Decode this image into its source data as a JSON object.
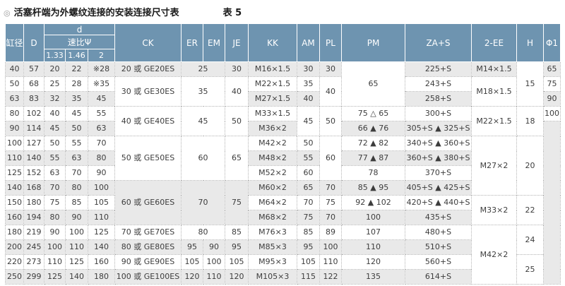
{
  "page": {
    "bullet": "◎",
    "title": "活塞杆端为外螺纹连接的安装连接尺寸表",
    "table_label": "表 5"
  },
  "colors": {
    "header_bg": "#6e94b0",
    "header_text": "#ffffff",
    "row_gray": "#e9e9e9",
    "row_white": "#ffffff",
    "border": "#b3b3b3",
    "text": "#3d3d3d"
  },
  "table": {
    "header_rows": [
      [
        {
          "t": "缸径",
          "rs": 3
        },
        {
          "t": "D",
          "rs": 3
        },
        {
          "t": "d",
          "cs": 3
        },
        {
          "t": "CK",
          "rs": 3
        },
        {
          "t": "ER",
          "rs": 3
        },
        {
          "t": "EM",
          "rs": 3
        },
        {
          "t": "JE",
          "rs": 3
        },
        {
          "t": "KK",
          "rs": 3
        },
        {
          "t": "AM",
          "rs": 3
        },
        {
          "t": "PL",
          "rs": 3
        },
        {
          "t": "PM",
          "rs": 3
        },
        {
          "t": "ZA+S",
          "rs": 3
        },
        {
          "t": "2-EE",
          "rs": 3
        },
        {
          "t": "H",
          "rs": 3
        },
        {
          "t": "Φ1",
          "rs": 3
        }
      ],
      [
        {
          "t": "速比Ψ",
          "cs": 3
        }
      ],
      [
        {
          "t": "1.33"
        },
        {
          "t": "1.46"
        },
        {
          "t": "2"
        }
      ]
    ],
    "rows": [
      [
        {
          "t": "40"
        },
        {
          "t": "57"
        },
        {
          "t": "20"
        },
        {
          "t": "22"
        },
        {
          "t": "※28"
        },
        {
          "t": "20 或 GE20ES"
        },
        {
          "t": "25",
          "cs": 2
        },
        {
          "t": "30"
        },
        {
          "t": "M16×1.5"
        },
        {
          "t": "30"
        },
        {
          "t": "30"
        },
        {
          "t": "65",
          "rs": 3,
          "bg": "w"
        },
        {
          "t": "225+S"
        },
        {
          "t": "M14×1.5"
        },
        {
          "t": "15",
          "rs": 3,
          "bg": "w"
        },
        {
          "t": "65"
        }
      ],
      [
        {
          "t": "50"
        },
        {
          "t": "68"
        },
        {
          "t": "25"
        },
        {
          "t": "28"
        },
        {
          "t": "※35"
        },
        {
          "t": "30 或 GE30ES",
          "rs": 2
        },
        {
          "t": "35",
          "cs": 2,
          "rs": 2
        },
        {
          "t": "40",
          "rs": 2
        },
        {
          "t": "M22×1.5"
        },
        {
          "t": "35"
        },
        {
          "t": "40",
          "rs": 2
        },
        {
          "t": "243+S"
        },
        {
          "t": "M18×1.5",
          "rs": 2
        },
        {
          "t": "75"
        }
      ],
      [
        {
          "t": "63"
        },
        {
          "t": "83"
        },
        {
          "t": "32"
        },
        {
          "t": "35"
        },
        {
          "t": "45"
        },
        {
          "t": "M27×1.5"
        },
        {
          "t": "40"
        },
        {
          "t": "258+S"
        },
        {
          "t": "90"
        }
      ],
      [
        {
          "t": "80"
        },
        {
          "t": "102"
        },
        {
          "t": "40"
        },
        {
          "t": "45"
        },
        {
          "t": "55"
        },
        {
          "t": "40 或 GE40ES",
          "rs": 2
        },
        {
          "t": "45",
          "cs": 2,
          "rs": 2
        },
        {
          "t": "50",
          "rs": 2
        },
        {
          "t": "M33×1.5"
        },
        {
          "t": "45",
          "rs": 2
        },
        {
          "t": "50",
          "rs": 2
        },
        {
          "t": "75 △ 65"
        },
        {
          "t": "300+S"
        },
        {
          "t": "M22×1.5",
          "rs": 2
        },
        {
          "t": "18",
          "rs": 2
        },
        {
          "t": "100"
        }
      ],
      [
        {
          "t": "90"
        },
        {
          "t": "114"
        },
        {
          "t": "45"
        },
        {
          "t": "50"
        },
        {
          "t": "63"
        },
        {
          "t": "M36×2"
        },
        {
          "t": "66 ▲ 76"
        },
        {
          "t": "305+S ▲ 325+S"
        },
        {
          "t": "",
          "rs": 11,
          "bg": "g"
        }
      ],
      [
        {
          "t": "100"
        },
        {
          "t": "127"
        },
        {
          "t": "50"
        },
        {
          "t": "55"
        },
        {
          "t": "70"
        },
        {
          "t": "50 或 GE50ES",
          "rs": 3
        },
        {
          "t": "60",
          "cs": 2,
          "rs": 3
        },
        {
          "t": "65",
          "rs": 3
        },
        {
          "t": "M42×2"
        },
        {
          "t": "50"
        },
        {
          "t": "60",
          "rs": 3
        },
        {
          "t": "72 ▲ 82"
        },
        {
          "t": "340+S ▲ 360+S"
        },
        {
          "t": "M27×2",
          "rs": 4
        },
        {
          "t": "20",
          "rs": 4
        }
      ],
      [
        {
          "t": "110"
        },
        {
          "t": "140"
        },
        {
          "t": "55"
        },
        {
          "t": "63"
        },
        {
          "t": "80"
        },
        {
          "t": "M48×2"
        },
        {
          "t": "55"
        },
        {
          "t": "77 ▲ 87"
        },
        {
          "t": "360+S ▲ 380+S"
        }
      ],
      [
        {
          "t": "125"
        },
        {
          "t": "152"
        },
        {
          "t": "63"
        },
        {
          "t": "70"
        },
        {
          "t": "90"
        },
        {
          "t": "M52×2"
        },
        {
          "t": "60"
        },
        {
          "t": "78"
        },
        {
          "t": "370+S"
        }
      ],
      [
        {
          "t": "140"
        },
        {
          "t": "168"
        },
        {
          "t": "70"
        },
        {
          "t": "80"
        },
        {
          "t": "100"
        },
        {
          "t": "60 或 GE60ES",
          "rs": 3
        },
        {
          "t": "70",
          "cs": 2,
          "rs": 3
        },
        {
          "t": "75",
          "rs": 3
        },
        {
          "t": "M60×2"
        },
        {
          "t": "65"
        },
        {
          "t": "70"
        },
        {
          "t": "85 ▲ 95"
        },
        {
          "t": "405+S ▲ 425+S"
        }
      ],
      [
        {
          "t": "150"
        },
        {
          "t": "180"
        },
        {
          "t": "75"
        },
        {
          "t": "85"
        },
        {
          "t": "105"
        },
        {
          "t": "M64×2"
        },
        {
          "t": "70"
        },
        {
          "t": "75"
        },
        {
          "t": "92 ▲ 102"
        },
        {
          "t": "420+S ▲ 440+S"
        },
        {
          "t": "M33×2",
          "rs": 2
        },
        {
          "t": "22",
          "rs": 2
        }
      ],
      [
        {
          "t": "160"
        },
        {
          "t": "194"
        },
        {
          "t": "80"
        },
        {
          "t": "90"
        },
        {
          "t": "110"
        },
        {
          "t": "M68×2"
        },
        {
          "t": "75"
        },
        {
          "t": "70"
        },
        {
          "t": "100"
        },
        {
          "t": "435+S"
        }
      ],
      [
        {
          "t": "180"
        },
        {
          "t": "219"
        },
        {
          "t": "90"
        },
        {
          "t": "100"
        },
        {
          "t": "125"
        },
        {
          "t": "70 或 GE70ES"
        },
        {
          "t": "80",
          "cs": 2
        },
        {
          "t": "85"
        },
        {
          "t": "M76×3"
        },
        {
          "t": "85"
        },
        {
          "t": "89"
        },
        {
          "t": "107"
        },
        {
          "t": "480+S"
        },
        {
          "t": "M42×2",
          "rs": 4
        },
        {
          "t": "24",
          "rs": 2
        }
      ],
      [
        {
          "t": "200"
        },
        {
          "t": "245"
        },
        {
          "t": "100"
        },
        {
          "t": "110"
        },
        {
          "t": "140"
        },
        {
          "t": "80 或 GE80ES"
        },
        {
          "t": "95"
        },
        {
          "t": "90"
        },
        {
          "t": "95"
        },
        {
          "t": "M85×3"
        },
        {
          "t": "95"
        },
        {
          "t": "100"
        },
        {
          "t": "110"
        },
        {
          "t": "510+S"
        }
      ],
      [
        {
          "t": "220"
        },
        {
          "t": "273"
        },
        {
          "t": "110"
        },
        {
          "t": "125"
        },
        {
          "t": "160"
        },
        {
          "t": "90 或 GE90ES"
        },
        {
          "t": "105"
        },
        {
          "t": "100"
        },
        {
          "t": "105"
        },
        {
          "t": "M95×3"
        },
        {
          "t": "105"
        },
        {
          "t": "110"
        },
        {
          "t": "120"
        },
        {
          "t": "560+S"
        },
        {
          "t": "25",
          "rs": 2
        }
      ],
      [
        {
          "t": "250"
        },
        {
          "t": "299"
        },
        {
          "t": "125"
        },
        {
          "t": "140"
        },
        {
          "t": "180"
        },
        {
          "t": "100 或 GE100ES"
        },
        {
          "t": "120"
        },
        {
          "t": "110"
        },
        {
          "t": "120"
        },
        {
          "t": "M105×3"
        },
        {
          "t": "115"
        },
        {
          "t": "122"
        },
        {
          "t": "135"
        },
        {
          "t": "614+S"
        }
      ]
    ]
  }
}
